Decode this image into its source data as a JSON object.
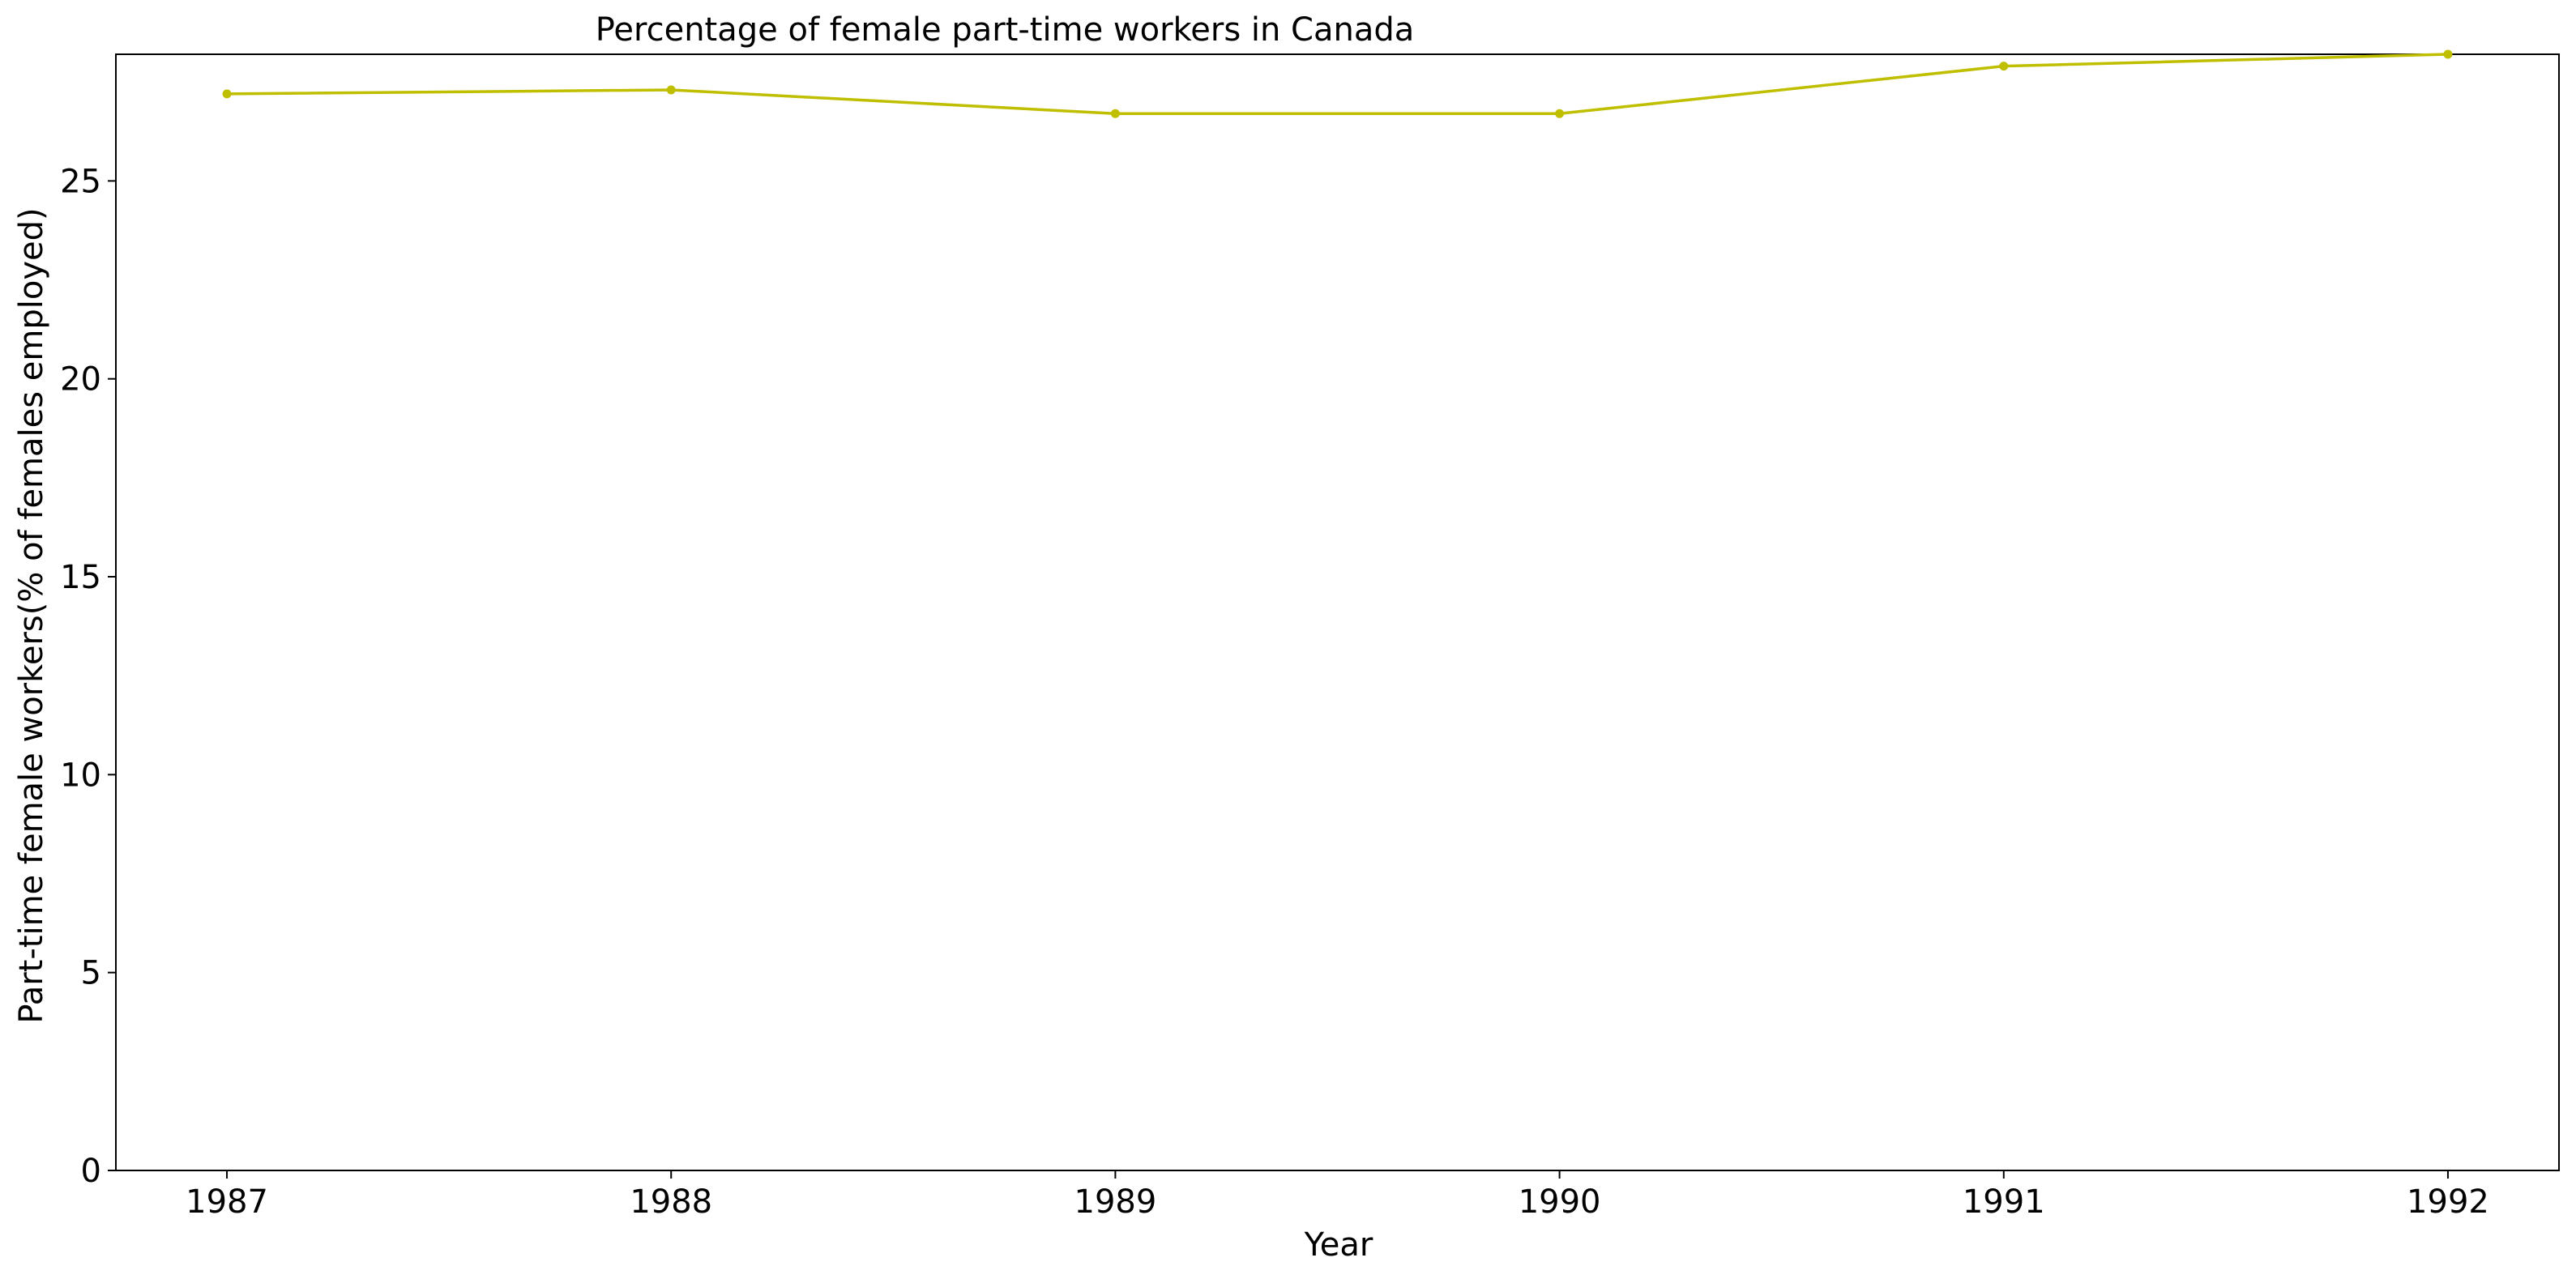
{
  "chart_data": {
    "type": "line",
    "title": "Percentage of female part-time workers in Canada",
    "xlabel": "Year",
    "ylabel": "Part-time female workers(% of females employed)",
    "x": [
      "1987",
      "1988",
      "1989",
      "1990",
      "1991",
      "1992"
    ],
    "series": [
      {
        "values": [
          27.2,
          27.3,
          26.7,
          26.7,
          27.9,
          28.2
        ],
        "color": "#bfbf00"
      }
    ],
    "ylim": [
      0,
      28.2
    ],
    "yticks": [
      0,
      5,
      10,
      15,
      20,
      25
    ],
    "grid": false,
    "legend": "none"
  }
}
